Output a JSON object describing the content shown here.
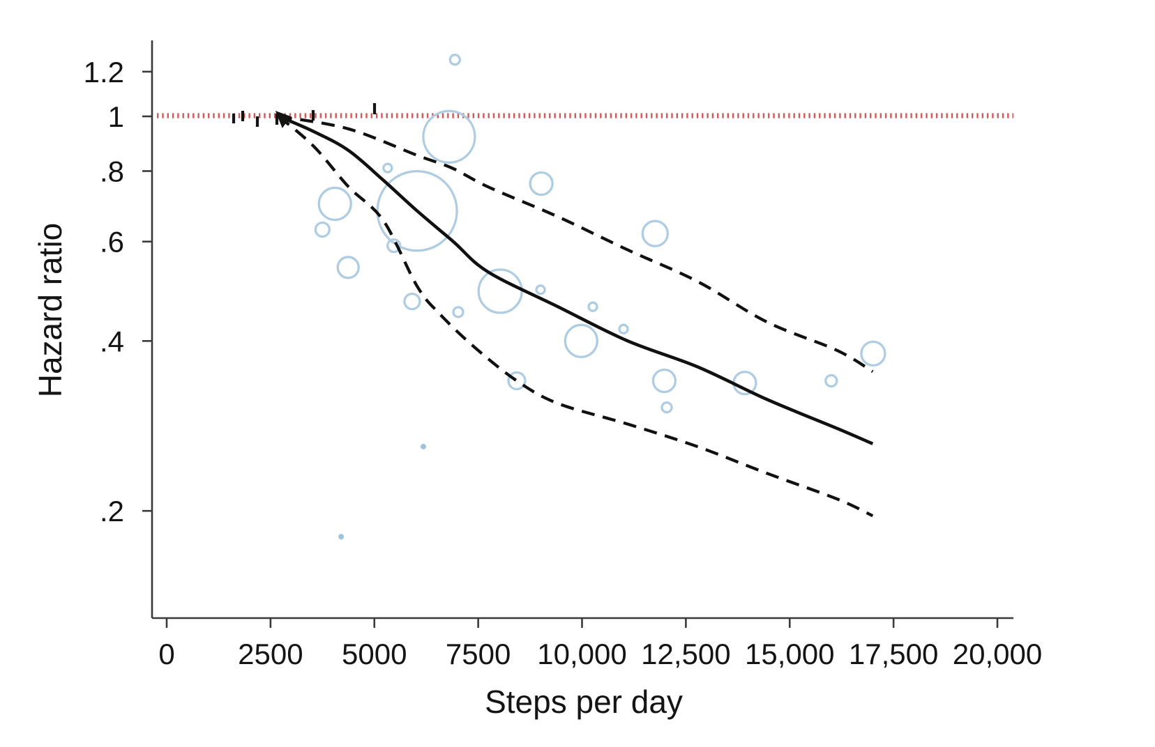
{
  "chart_data": {
    "type": "line",
    "subtype": "dose-response-meta-analysis-with-study-bubbles",
    "title": "",
    "xlabel": "Steps per day",
    "ylabel": "Hazard ratio",
    "x_axis": {
      "min": 0,
      "max": 20400,
      "ticks": [
        0,
        2500,
        5000,
        7500,
        10000,
        12500,
        15000,
        17500,
        20000
      ],
      "tick_labels": [
        "0",
        "2500",
        "5000",
        "7500",
        "10,000",
        "12,500",
        "15,000",
        "17,500",
        "20,000"
      ]
    },
    "y_axis": {
      "scale": "log",
      "min": 0.13,
      "max": 1.32,
      "ticks": [
        1.2,
        1,
        0.8,
        0.6,
        0.4,
        0.2
      ],
      "tick_labels": [
        "1.2",
        "1",
        ".8",
        ".6",
        ".4",
        ".2"
      ]
    },
    "grid": "off",
    "legend": "none",
    "reference_line": {
      "hr": 1,
      "color": "#cf5b58",
      "style": "dotted"
    },
    "curve_origin": {
      "steps": 2700,
      "hr": 1.0
    },
    "series": [
      {
        "name": "hazard_ratio_spline",
        "style": "solid",
        "color": "#111111",
        "points": [
          [
            2700,
            1.0
          ],
          [
            3540,
            0.94
          ],
          [
            4380,
            0.87
          ],
          [
            5220,
            0.77
          ],
          [
            6030,
            0.68
          ],
          [
            6900,
            0.6
          ],
          [
            7740,
            0.53
          ],
          [
            9420,
            0.46
          ],
          [
            11100,
            0.4
          ],
          [
            12780,
            0.36
          ],
          [
            14460,
            0.315
          ],
          [
            16140,
            0.28
          ],
          [
            17000,
            0.263
          ]
        ]
      },
      {
        "name": "ci_upper",
        "style": "dashed",
        "color": "#111111",
        "points": [
          [
            2700,
            1.0
          ],
          [
            4380,
            0.95
          ],
          [
            6030,
            0.853
          ],
          [
            6870,
            0.81
          ],
          [
            7740,
            0.75
          ],
          [
            9420,
            0.664
          ],
          [
            11100,
            0.58
          ],
          [
            12780,
            0.51
          ],
          [
            14460,
            0.432
          ],
          [
            16140,
            0.385
          ],
          [
            17000,
            0.353
          ]
        ]
      },
      {
        "name": "ci_lower",
        "style": "dashed",
        "color": "#111111",
        "points": [
          [
            2700,
            1.0
          ],
          [
            3540,
            0.885
          ],
          [
            4380,
            0.75
          ],
          [
            5220,
            0.653
          ],
          [
            6030,
            0.5
          ],
          [
            6570,
            0.447
          ],
          [
            7410,
            0.39
          ],
          [
            8430,
            0.34
          ],
          [
            9420,
            0.31
          ],
          [
            11100,
            0.285
          ],
          [
            12780,
            0.26
          ],
          [
            14460,
            0.233
          ],
          [
            16140,
            0.21
          ],
          [
            17000,
            0.196
          ]
        ]
      }
    ],
    "bubbles": {
      "color": "#aecde3",
      "fill_color": "#9cc4dc",
      "points_steps_hr_radius": [
        [
          6800,
          0.92,
          37
        ],
        [
          6940,
          1.26,
          7
        ],
        [
          5320,
          0.81,
          6
        ],
        [
          6030,
          0.68,
          57
        ],
        [
          4050,
          0.7,
          23
        ],
        [
          3750,
          0.63,
          10
        ],
        [
          4370,
          0.54,
          15
        ],
        [
          5470,
          0.59,
          9
        ],
        [
          5910,
          0.47,
          11
        ],
        [
          7020,
          0.45,
          7
        ],
        [
          9020,
          0.76,
          16
        ],
        [
          8030,
          0.49,
          31
        ],
        [
          9000,
          0.493,
          6
        ],
        [
          11760,
          0.62,
          18
        ],
        [
          10260,
          0.46,
          6
        ],
        [
          9980,
          0.4,
          23
        ],
        [
          11000,
          0.42,
          6
        ],
        [
          8430,
          0.34,
          12
        ],
        [
          11980,
          0.34,
          16
        ],
        [
          12040,
          0.305,
          7
        ],
        [
          13920,
          0.337,
          16
        ],
        [
          16000,
          0.34,
          8
        ],
        [
          17010,
          0.38,
          17
        ]
      ],
      "filled_points_steps_hr_radius": [
        [
          6180,
          0.26,
          4
        ],
        [
          4200,
          0.18,
          4
        ]
      ]
    },
    "rug_marks": {
      "at_hr": 1,
      "items": [
        {
          "steps": 1612,
          "dy": [
            -4,
            10
          ]
        },
        {
          "steps": 1830,
          "dy": [
            -8,
            7
          ]
        },
        {
          "steps": 2183,
          "dy": [
            0,
            15
          ]
        },
        {
          "steps": 2653,
          "dy": [
            -4,
            12
          ]
        },
        {
          "steps": 3526,
          "dy": [
            -9,
            6
          ]
        },
        {
          "steps": 5004,
          "dy": [
            -19,
            -3
          ]
        }
      ]
    }
  }
}
